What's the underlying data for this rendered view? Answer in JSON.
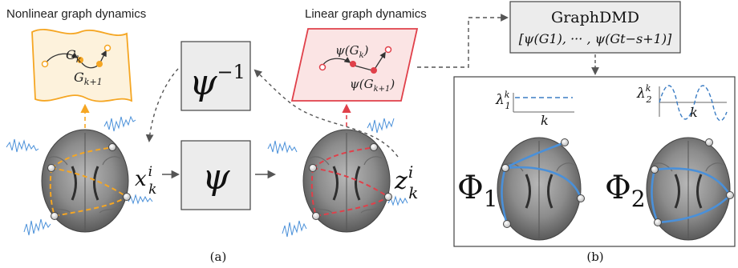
{
  "titles": {
    "nonlinear": "Nonlinear graph dynamics",
    "linear": "Linear graph dynamics"
  },
  "graphdmd": {
    "title": "GraphDMD",
    "formula": "[ψ(G1), ··· , ψ(Gt−s+1)]"
  },
  "operators": {
    "psi": "ψ",
    "psi_inverse": "ψ",
    "psi_inverse_sup": "−1"
  },
  "variables": {
    "x_base": "x",
    "x_sup": "i",
    "x_sub": "k",
    "z_base": "z",
    "z_sup": "i",
    "z_sub": "k"
  },
  "nonlinear_labels": {
    "g_k": "G",
    "g_k_sub": "k",
    "g_k1": "G",
    "g_k1_sub": "k+1"
  },
  "linear_labels": {
    "psi_gk": "ψ(G",
    "psi_gk_sub": "k",
    "psi_gk_close": ")",
    "psi_gk1": "ψ(G",
    "psi_gk1_sub": "k+1",
    "psi_gk1_close": ")"
  },
  "eigen": {
    "lambda1_base": "λ",
    "lambda1_sup": "k",
    "lambda1_sub": "1",
    "lambda2_base": "λ",
    "lambda2_sup": "k",
    "lambda2_sub": "2",
    "axis1_label": "k",
    "axis2_label": "k"
  },
  "modes": {
    "phi1_base": "Φ",
    "phi1_sub": "1",
    "phi2_base": "Φ",
    "phi2_sub": "2"
  },
  "captions": {
    "a": "(a)",
    "b": "(b)"
  },
  "colors": {
    "orange": "#f5a623",
    "red": "#e0404a",
    "blue": "#4a90d9",
    "box_gray": "#ececec",
    "brain_gray": "#808080",
    "eigen_blue": "#3b7dc4"
  }
}
